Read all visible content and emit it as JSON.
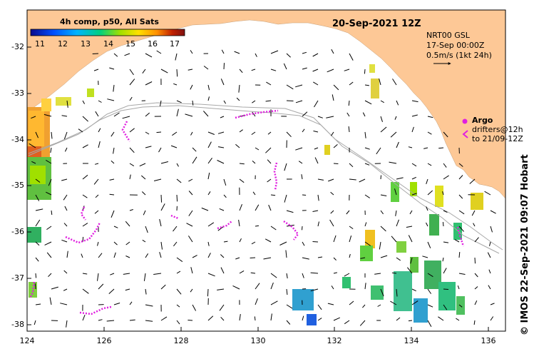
{
  "title": "20-Sep-2021 12Z",
  "colorbar": {
    "title": "4h comp, p50, All Sats",
    "ticks": [
      "11",
      "12",
      "13",
      "14",
      "15",
      "16",
      "17"
    ],
    "colors": [
      "#0a0a8c",
      "#0050ff",
      "#00b4ff",
      "#00d080",
      "#a0e000",
      "#ffe000",
      "#ff9000",
      "#c02000",
      "#801010"
    ]
  },
  "info": {
    "line1": "NRT00 GSL",
    "line2": "17-Sep 00:00Z",
    "line3": "0.5m/s (1kt 24h)"
  },
  "argo": {
    "label": "Argo",
    "line2": "drifters@12h",
    "line3": "to 21/09-12Z",
    "color": "#e020e0"
  },
  "credit": "© IMOS 22-Sep-2021 09:07 Hobart",
  "axes": {
    "lat_labels": [
      "-32",
      "-33",
      "-34",
      "-35",
      "-36",
      "-37",
      "-38"
    ],
    "lon_labels": [
      "124",
      "126",
      "128",
      "130",
      "132",
      "134",
      "136"
    ]
  },
  "colors": {
    "land": "#fdc896",
    "ocean": "#ffffff",
    "bathymetry": "#a8a8a8"
  }
}
